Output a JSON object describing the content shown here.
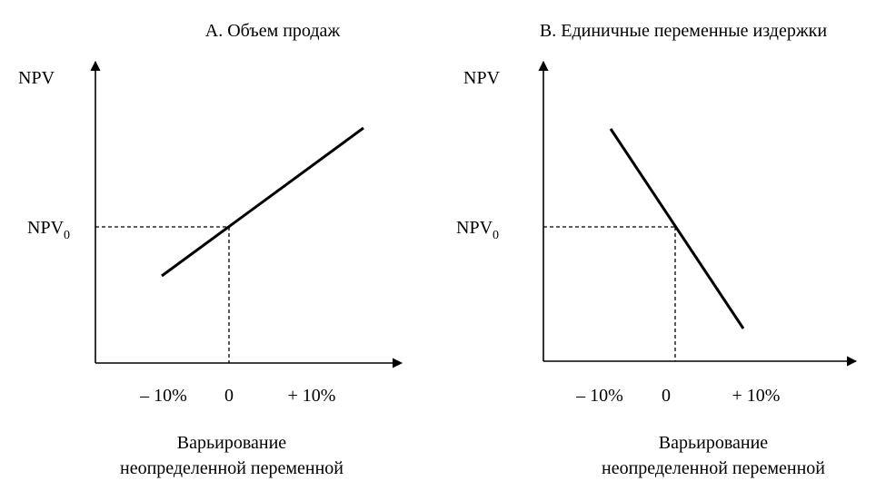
{
  "panels": [
    {
      "title": "А. Объем продаж",
      "y_label": "NPV",
      "y_marker": {
        "text": "NPV",
        "subscript": "0"
      },
      "x_ticks": [
        "– 10%",
        "0",
        "+ 10%"
      ],
      "x_label": [
        "Варьирование",
        "неопределенной переменной"
      ]
    },
    {
      "title": "В. Единичные переменные издержки",
      "y_label": "NPV",
      "y_marker": {
        "text": "NPV",
        "subscript": "0"
      },
      "x_ticks": [
        "– 10%",
        "0",
        "+ 10%"
      ],
      "x_label": [
        "Варьирование",
        "неопределенной переменной"
      ]
    }
  ]
}
